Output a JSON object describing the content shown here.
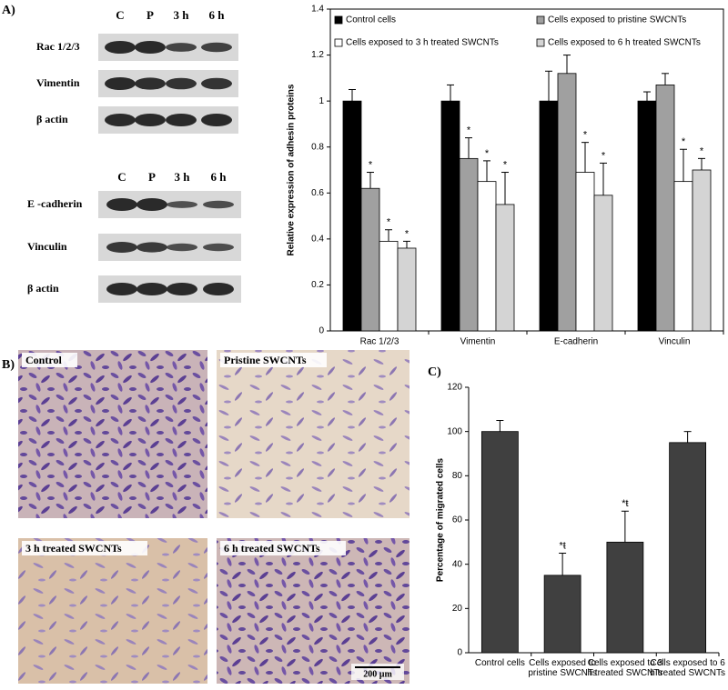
{
  "panel_labels": [
    "A)",
    "B)",
    "C)"
  ],
  "blots": [
    {
      "lanes": [
        "C",
        "P",
        "3 h",
        "6 h"
      ],
      "rows": [
        "Rac 1/2/3",
        "Vimentin",
        "β actin"
      ]
    },
    {
      "lanes": [
        "C",
        "P",
        "3 h",
        "6 h"
      ],
      "rows": [
        "E -cadherin",
        "Vinculin",
        "β actin"
      ]
    }
  ],
  "micrographs": {
    "labels": [
      "Control",
      "Pristine SWCNTs",
      "3 h treated SWCNTs",
      "6 h treated SWCNTs"
    ],
    "scale_bar": "200 µm"
  },
  "chart_data": [
    {
      "type": "bar",
      "ylabel": "Relative expression of adhesin proteins",
      "categories": [
        "Rac 1/2/3",
        "Vimentin",
        "E-cadherin",
        "Vinculin"
      ],
      "series": [
        {
          "name": "Control cells",
          "color": "#000000",
          "values": [
            1,
            1,
            1,
            1
          ],
          "errors": [
            0.05,
            0.07,
            0.13,
            0.04
          ],
          "markers": [
            null,
            null,
            null,
            null
          ]
        },
        {
          "name": "Cells exposed to pristine SWCNTs",
          "color": "#a0a0a0",
          "values": [
            0.62,
            0.75,
            1.12,
            1.07
          ],
          "errors": [
            0.07,
            0.09,
            0.08,
            0.05
          ],
          "markers": [
            "*",
            "*",
            null,
            null
          ]
        },
        {
          "name": "Cells exposed to 3 h treated SWCNTs",
          "color": "#ffffff",
          "values": [
            0.39,
            0.65,
            0.69,
            0.65
          ],
          "errors": [
            0.05,
            0.09,
            0.13,
            0.14
          ],
          "markers": [
            "*",
            "*",
            "*",
            "*"
          ]
        },
        {
          "name": "Cells exposed to 6 h treated SWCNTs",
          "color": "#d4d4d4",
          "values": [
            0.36,
            0.55,
            0.59,
            0.7
          ],
          "errors": [
            0.03,
            0.14,
            0.14,
            0.05
          ],
          "markers": [
            "*",
            "*",
            "*",
            "*"
          ]
        }
      ],
      "ylim": [
        0,
        1.4
      ],
      "yticks": [
        0,
        0.2,
        0.4,
        0.6,
        0.8,
        1,
        1.2,
        1.4
      ],
      "grid": false
    },
    {
      "type": "bar",
      "ylabel": "Percentage of migrated cells",
      "categories": [
        "Control cells",
        "Cells exposed to pristine SWCNTs",
        "Cells exposed to 3 h treated SWCNTs",
        "Cells exposed to 6 h treated SWCNTs"
      ],
      "series": [
        {
          "color": "#404040",
          "values": [
            100,
            35,
            50,
            95
          ],
          "errors": [
            5,
            10,
            14,
            5
          ],
          "markers": [
            null,
            "*ŧ",
            "*ŧ",
            null
          ]
        }
      ],
      "ylim": [
        0,
        120
      ],
      "yticks": [
        0,
        20,
        40,
        60,
        80,
        100,
        120
      ],
      "grid": false
    }
  ]
}
